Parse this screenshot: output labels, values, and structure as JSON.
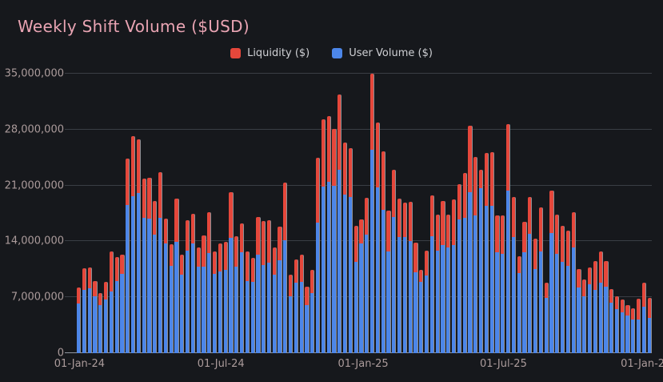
{
  "title": "Weekly Shift Volume ($USD)",
  "legend": {
    "items": [
      {
        "label": "Liquidity ($)",
        "color": "#e5473b"
      },
      {
        "label": "User Volume ($)",
        "color": "#4c86e9"
      }
    ]
  },
  "colors": {
    "background": "#16181c",
    "title_text": "#e9a4b3",
    "axis_text": "#ab9b9b",
    "legend_text": "#cfd0d4",
    "gridline": "#3a3e45",
    "baseline": "#9198a1",
    "bar_edge": "#8e9095",
    "liquidity_red": "#e5473b",
    "user_volume_blue": "#4c86e9"
  },
  "chart_data": {
    "type": "bar",
    "stacked": true,
    "title": "Weekly Shift Volume ($USD)",
    "unit": "USD (values in millions)",
    "interval": "weekly",
    "n_bars": 106,
    "legend_position": "top-center",
    "grid": "horizontal-only",
    "x_axis": {
      "tick_labels": [
        "01-Jan-24",
        "01-Jul-24",
        "01-Jan-25",
        "01-Jul-25",
        "01-Jan-26"
      ],
      "tick_week_positions": [
        0,
        26.07,
        52.29,
        78.14,
        104.43
      ]
    },
    "y_axis": {
      "tick_values_musd": [
        0,
        7,
        14,
        21,
        28,
        35
      ],
      "tick_labels": [
        "0",
        "7,000,000",
        "14,000,000",
        "21,000,000",
        "28,000,000",
        "35,000,000"
      ],
      "ylim_musd": [
        0,
        35
      ]
    },
    "series": [
      {
        "name": "User Volume ($)",
        "color": "#4c86e9",
        "values_musd": [
          6.2,
          7.9,
          8.1,
          7.1,
          6.0,
          6.7,
          7.7,
          9.0,
          9.9,
          18.6,
          19.7,
          20.1,
          16.9,
          16.8,
          14.8,
          17.0,
          13.7,
          10.9,
          13.9,
          9.8,
          12.8,
          13.7,
          10.8,
          10.8,
          12.5,
          9.9,
          10.2,
          10.4,
          14.4,
          10.8,
          12.6,
          9.0,
          8.9,
          12.3,
          11.0,
          11.3,
          9.8,
          11.6,
          14.1,
          7.1,
          8.8,
          8.9,
          6.0,
          7.5,
          16.3,
          20.9,
          21.5,
          21.0,
          23.0,
          19.9,
          19.6,
          11.4,
          13.7,
          14.8,
          25.7,
          20.8,
          18.0,
          12.7,
          17.1,
          14.5,
          14.5,
          14.0,
          10.1,
          8.9,
          9.7,
          14.6,
          12.8,
          13.5,
          13.2,
          13.5,
          16.7,
          17.0,
          20.2,
          17.3,
          20.7,
          18.5,
          18.5,
          12.6,
          12.4,
          20.4,
          14.5,
          10.0,
          12.6,
          14.9,
          10.5,
          12.7,
          6.9,
          15.0,
          12.4,
          11.4,
          10.9,
          13.2,
          8.2,
          7.1,
          8.6,
          7.9,
          8.8,
          8.3,
          6.3,
          5.5,
          5.1,
          4.7,
          4.2,
          4.2,
          5.8,
          4.4
        ]
      },
      {
        "name": "Liquidity ($)",
        "color": "#e5473b",
        "values_musd": [
          2.0,
          2.7,
          2.6,
          1.9,
          1.5,
          2.2,
          5.0,
          3.0,
          2.4,
          5.8,
          7.5,
          6.7,
          5.0,
          5.2,
          4.3,
          5.7,
          3.2,
          2.7,
          5.5,
          2.5,
          3.8,
          3.8,
          2.4,
          3.9,
          5.2,
          2.8,
          3.5,
          3.5,
          5.8,
          3.8,
          3.6,
          3.7,
          3.0,
          4.8,
          5.6,
          5.3,
          3.4,
          4.2,
          7.3,
          2.7,
          2.9,
          3.4,
          2.3,
          2.9,
          8.2,
          8.4,
          8.2,
          7.1,
          9.4,
          6.5,
          6.1,
          4.5,
          3.1,
          4.7,
          9.6,
          8.1,
          7.3,
          5.2,
          5.9,
          4.9,
          4.4,
          5.0,
          3.7,
          1.5,
          3.1,
          5.2,
          4.6,
          5.6,
          4.2,
          5.8,
          4.5,
          5.6,
          8.3,
          7.3,
          2.3,
          6.6,
          6.7,
          4.7,
          4.9,
          8.3,
          5.1,
          2.1,
          3.9,
          4.7,
          3.8,
          5.6,
          1.9,
          5.4,
          5.0,
          4.5,
          4.4,
          4.5,
          2.3,
          2.1,
          2.1,
          3.6,
          3.9,
          3.2,
          1.7,
          1.6,
          1.6,
          1.3,
          1.4,
          2.6,
          3.0,
          2.5
        ]
      }
    ]
  }
}
